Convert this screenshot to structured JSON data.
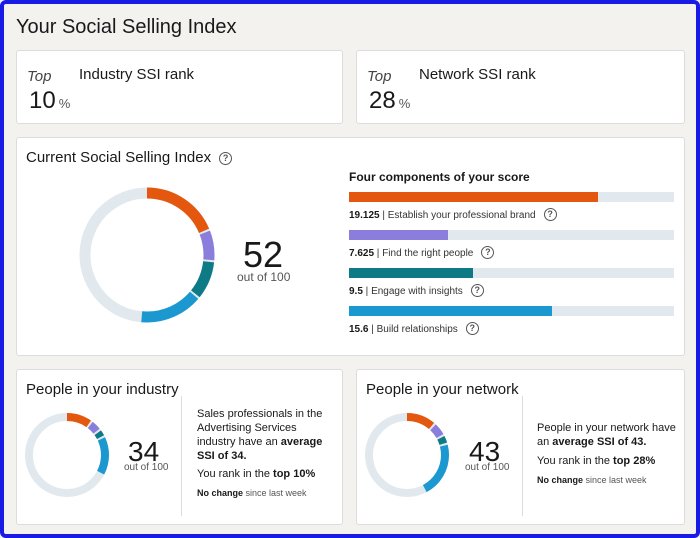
{
  "page_title": "Your Social Selling Index",
  "industry_rank": {
    "top_label": "Top",
    "label": "Industry SSI rank",
    "value": "10",
    "unit": "%"
  },
  "network_rank": {
    "top_label": "Top",
    "label": "Network SSI rank",
    "value": "28",
    "unit": "%"
  },
  "current": {
    "title": "Current Social Selling Index",
    "help_icon": "?",
    "score": "52",
    "out_of": "out of 100",
    "components_title": "Four components of your score",
    "components": [
      {
        "value": "19.125",
        "label": "Establish your professional brand",
        "fraction": 0.765,
        "color": "#e4570f"
      },
      {
        "value": "7.625",
        "label": "Find the right people",
        "fraction": 0.305,
        "color": "#8b7ddb"
      },
      {
        "value": "9.5",
        "label": "Engage with insights",
        "fraction": 0.38,
        "color": "#0e7a86"
      },
      {
        "value": "15.6",
        "label": "Build relationships",
        "fraction": 0.624,
        "color": "#1b98cf"
      }
    ]
  },
  "industry": {
    "title": "People in your industry",
    "score": "34",
    "out_of": "out of 100",
    "desc_pre": "Sales professionals in the Advertising Services industry have an ",
    "desc_bold": "average SSI of 34.",
    "rank_pre": "You rank in the ",
    "rank_bold": "top 10%",
    "change_bold": "No change",
    "change_rest": " since last week",
    "segments": [
      0.105,
      0.045,
      0.03,
      0.155
    ]
  },
  "network": {
    "title": "People in your network",
    "score": "43",
    "out_of": "out of 100",
    "desc_pre": "People in your network have an ",
    "desc_bold": "average SSI of 43.",
    "rank_pre": "You rank in the ",
    "rank_bold": "top 28%",
    "change_bold": "No change",
    "change_rest": " since last week",
    "segments": [
      0.12,
      0.055,
      0.035,
      0.22
    ]
  },
  "colors": {
    "brand": "#e4570f",
    "find": "#8b7ddb",
    "engage": "#0e7a86",
    "build": "#1b98cf",
    "track": "#e1e9ee"
  }
}
